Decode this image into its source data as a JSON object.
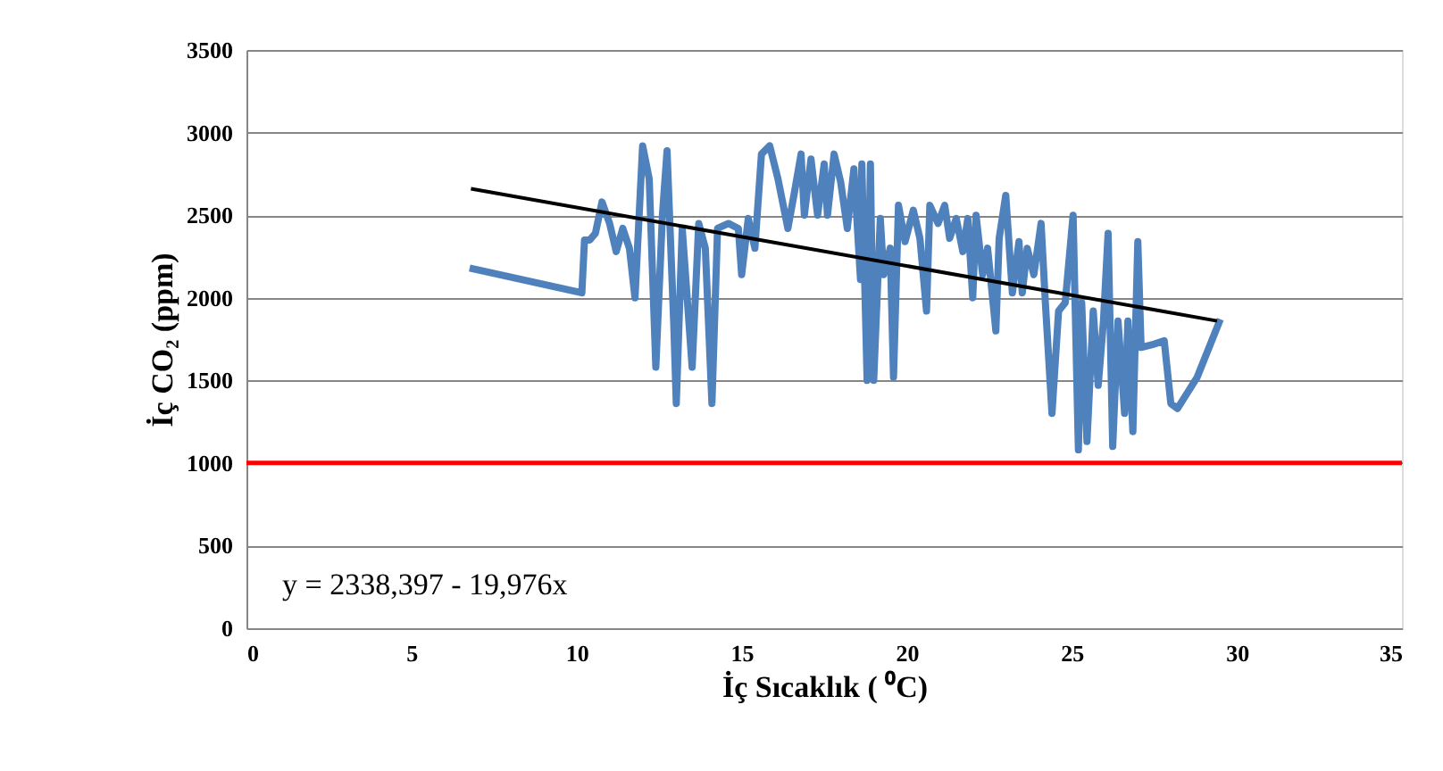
{
  "chart_data": {
    "type": "line",
    "xlabel": "İç Sıcaklık ( ⁰C)",
    "ylabel": "İç CO₂ (ppm)",
    "xlim": [
      0,
      35
    ],
    "xticks": [
      0,
      5,
      10,
      15,
      20,
      25,
      30,
      35
    ],
    "ylim": [
      0,
      3500
    ],
    "yticks": [
      0,
      500,
      1000,
      1500,
      2000,
      2500,
      3000,
      3500
    ],
    "grid": "y",
    "marker": "none",
    "line_style": "solid",
    "series": [
      {
        "color": "#4f81bd",
        "x": [
          6.76,
          10.16,
          10.24,
          10.4,
          10.57,
          10.77,
          11.0,
          11.2,
          11.4,
          11.6,
          11.77,
          12.0,
          12.2,
          12.4,
          12.6,
          12.74,
          12.94,
          13.02,
          13.2,
          13.5,
          13.7,
          13.9,
          14.1,
          14.27,
          14.6,
          14.9,
          15.0,
          15.2,
          15.4,
          15.6,
          15.85,
          16.1,
          16.4,
          16.6,
          16.8,
          16.9,
          17.1,
          17.3,
          17.5,
          17.6,
          17.8,
          18.0,
          18.2,
          18.4,
          18.6,
          18.64,
          18.8,
          18.9,
          19.0,
          19.2,
          19.3,
          19.5,
          19.6,
          19.75,
          19.95,
          20.2,
          20.4,
          20.6,
          20.7,
          20.95,
          21.15,
          21.3,
          21.5,
          21.7,
          21.85,
          22.0,
          22.1,
          22.3,
          22.45,
          22.7,
          22.8,
          23.0,
          23.2,
          23.4,
          23.5,
          23.65,
          23.85,
          24.07,
          24.2,
          24.4,
          24.6,
          24.8,
          25.04,
          25.2,
          25.3,
          25.46,
          25.65,
          25.8,
          25.96,
          26.1,
          26.24,
          26.4,
          26.6,
          26.7,
          26.85,
          27.0,
          27.1,
          27.5,
          27.8,
          28.0,
          28.2,
          28.8,
          29.5
        ],
        "values": [
          2180,
          2030,
          2350,
          2350,
          2390,
          2580,
          2450,
          2280,
          2420,
          2300,
          2000,
          2920,
          2720,
          1580,
          2500,
          2890,
          1860,
          1360,
          2420,
          1580,
          2450,
          2300,
          1360,
          2420,
          2450,
          2420,
          2140,
          2480,
          2300,
          2870,
          2920,
          2720,
          2420,
          2640,
          2870,
          2500,
          2840,
          2500,
          2810,
          2500,
          2870,
          2700,
          2420,
          2780,
          2110,
          2810,
          1500,
          2810,
          1500,
          2480,
          2140,
          2300,
          1520,
          2560,
          2340,
          2530,
          2360,
          1920,
          2560,
          2450,
          2560,
          2360,
          2480,
          2280,
          2480,
          2000,
          2500,
          2140,
          2300,
          1800,
          2360,
          2620,
          2030,
          2340,
          2030,
          2300,
          2140,
          2450,
          1970,
          1300,
          1920,
          1970,
          2500,
          1080,
          1970,
          1130,
          1920,
          1470,
          1860,
          2390,
          1100,
          1860,
          1300,
          1860,
          1190,
          2340,
          1700,
          1720,
          1740,
          1360,
          1330,
          1520,
          1870
        ]
      },
      {
        "type": "line",
        "color": "#000000",
        "x": [
          6.8,
          29.4
        ],
        "values": [
          2660,
          1860
        ]
      }
    ],
    "ref_lines": [
      {
        "axis": "y",
        "value": 1000,
        "color": "#ff0000"
      }
    ],
    "annotations": [
      "y = 2338,397 - 19,976x"
    ]
  }
}
